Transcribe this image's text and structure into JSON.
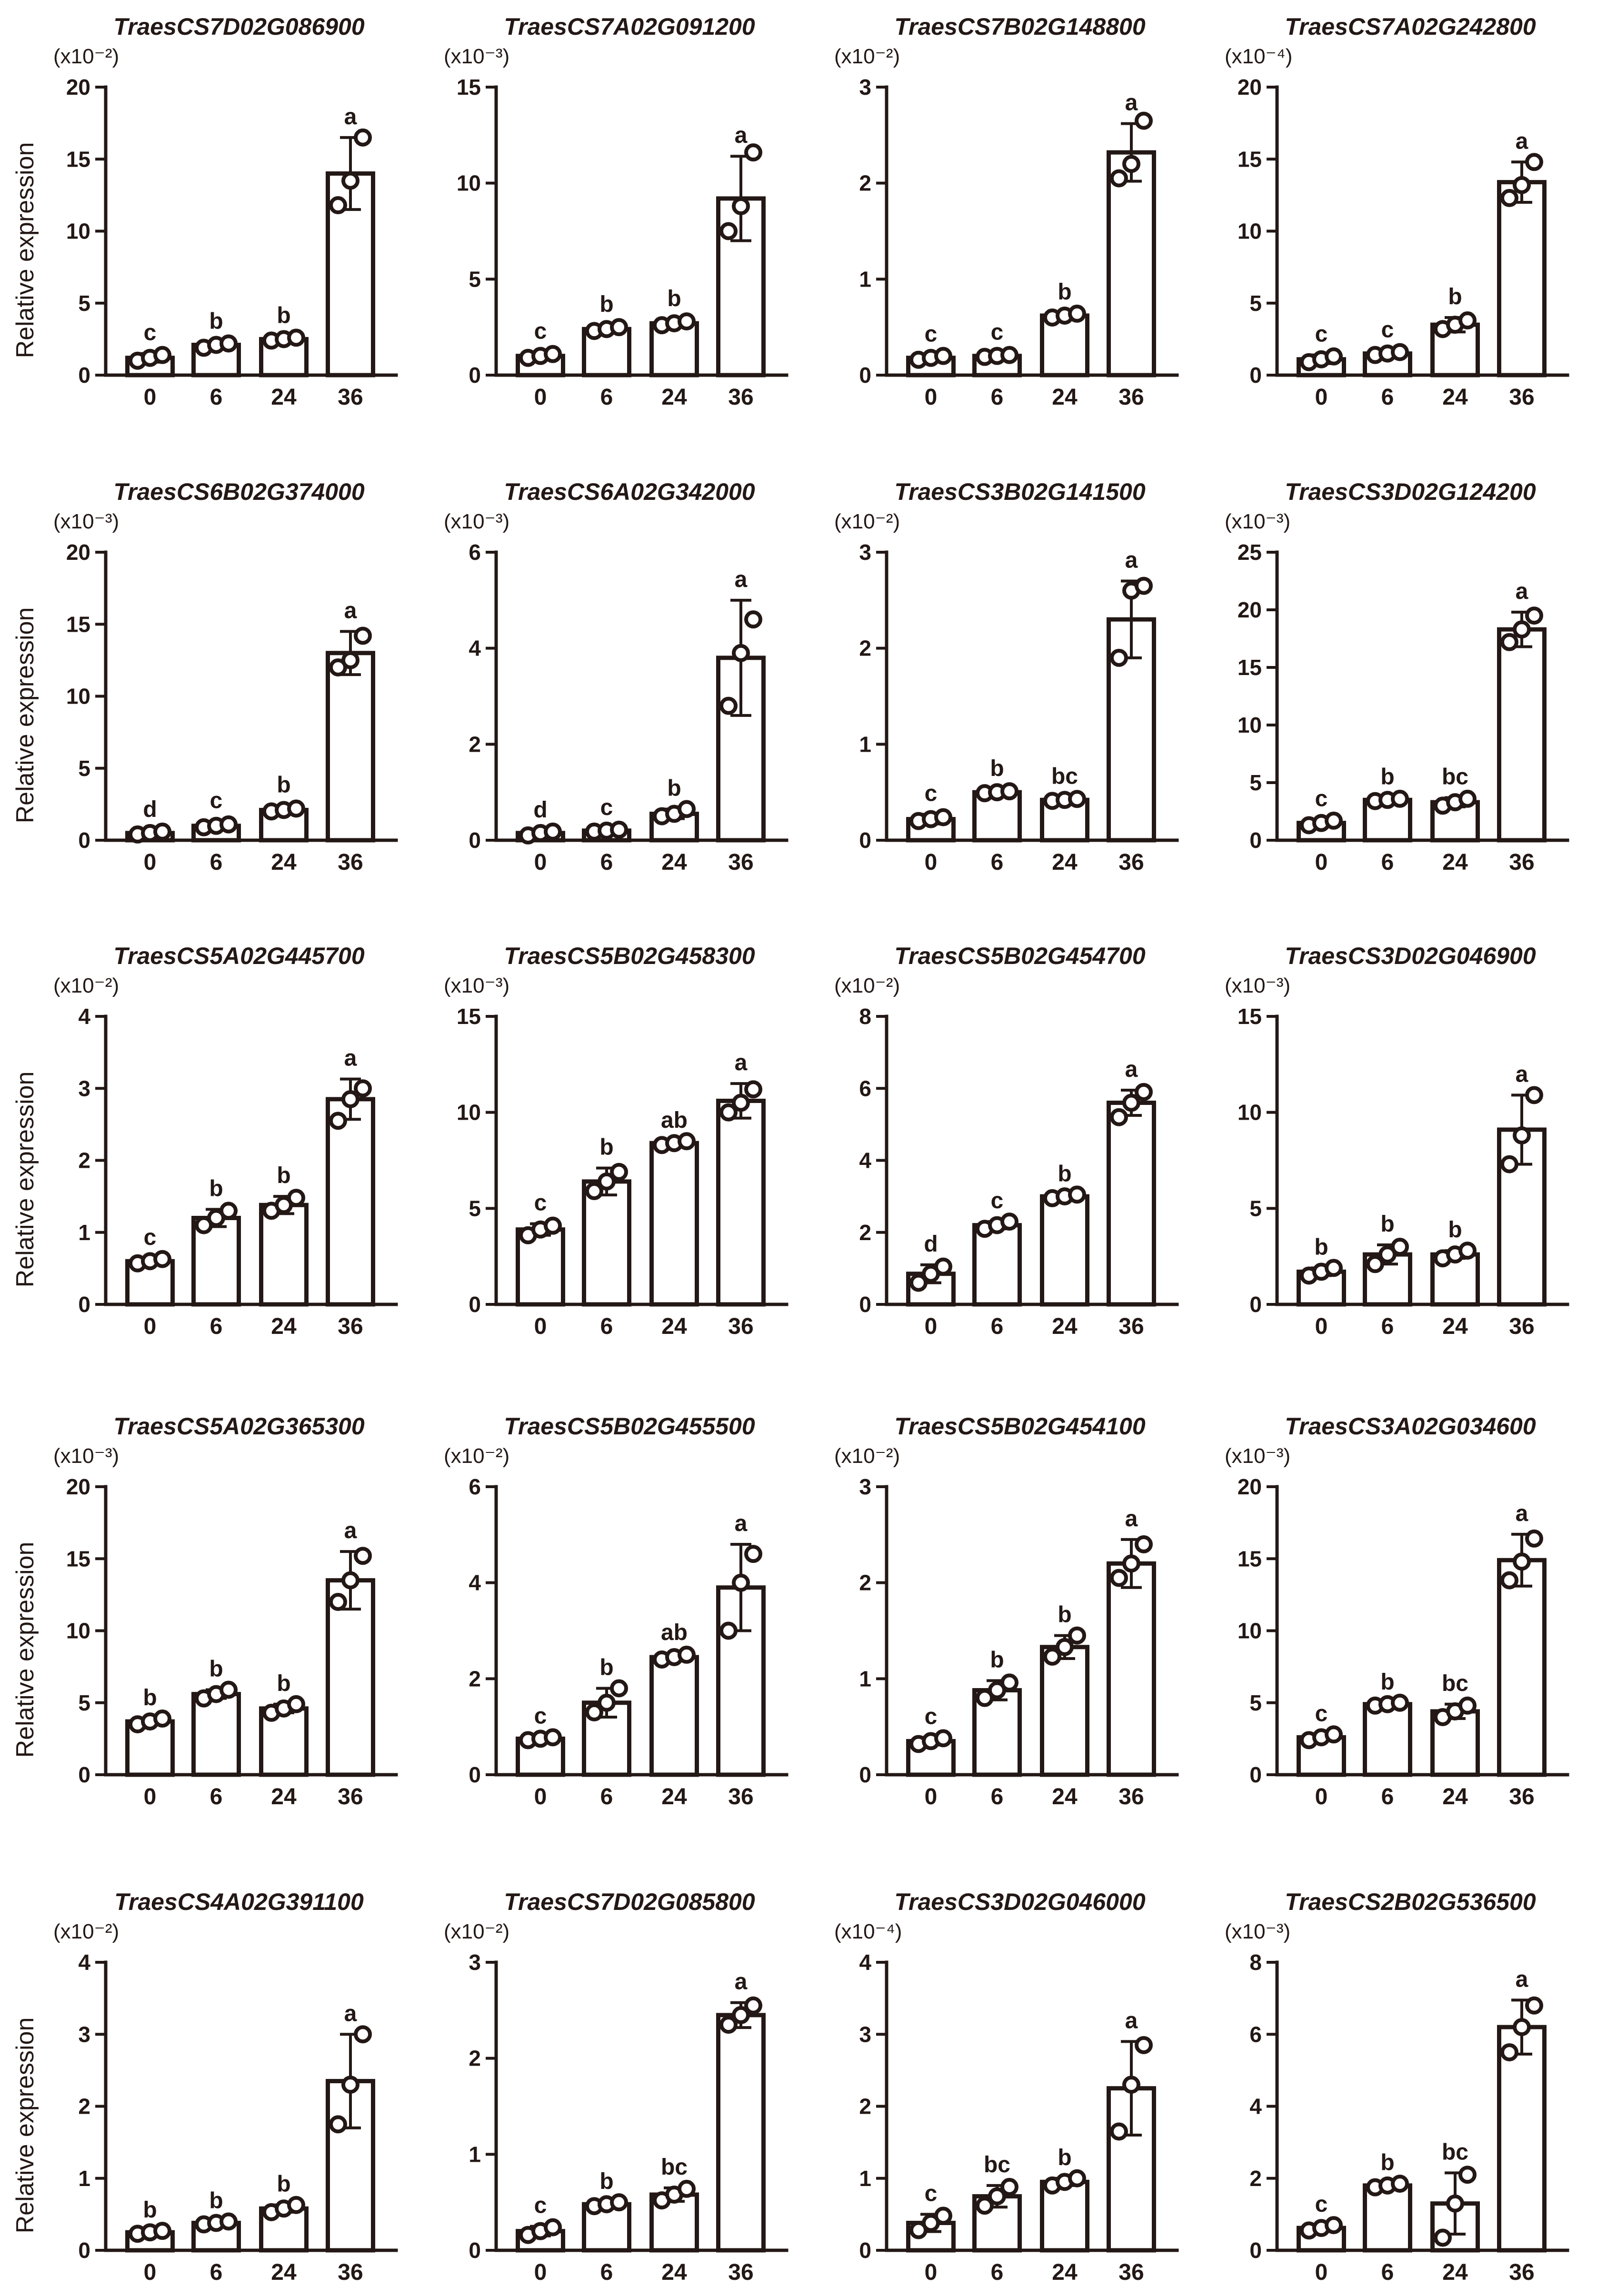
{
  "figure": {
    "y_axis_label": "Relative expression",
    "colors": {
      "ink": "#231815",
      "bar_fill": "#ffffff",
      "background": "#ffffff"
    }
  },
  "chart_data": [
    {
      "type": "bar",
      "title": "TraesCS7D02G086900",
      "multiplier": "(x10⁻²)",
      "ylabel": "Relative expression",
      "xlabel": "",
      "ylim": [
        0,
        20
      ],
      "yticks": [
        0,
        5,
        10,
        15,
        20
      ],
      "categories": [
        "0",
        "6",
        "24",
        "36"
      ],
      "values": [
        1.2,
        2.1,
        2.5,
        14.0
      ],
      "errors": [
        0.3,
        0.2,
        0.2,
        2.5
      ],
      "letters": [
        "c",
        "b",
        "b",
        "a"
      ],
      "points": [
        [
          1.0,
          1.2,
          1.4
        ],
        [
          1.9,
          2.1,
          2.2
        ],
        [
          2.4,
          2.5,
          2.6
        ],
        [
          11.8,
          13.5,
          16.5
        ]
      ]
    },
    {
      "type": "bar",
      "title": "TraesCS7A02G091200",
      "multiplier": "(x10⁻³)",
      "ylabel": "",
      "xlabel": "",
      "ylim": [
        0,
        15
      ],
      "yticks": [
        0,
        5,
        10,
        15
      ],
      "categories": [
        "0",
        "6",
        "24",
        "36"
      ],
      "values": [
        1.0,
        2.4,
        2.7,
        9.2
      ],
      "errors": [
        0.2,
        0.2,
        0.2,
        2.2
      ],
      "letters": [
        "c",
        "b",
        "b",
        "a"
      ],
      "points": [
        [
          0.9,
          1.0,
          1.1
        ],
        [
          2.3,
          2.4,
          2.5
        ],
        [
          2.6,
          2.7,
          2.8
        ],
        [
          7.5,
          8.8,
          11.6
        ]
      ]
    },
    {
      "type": "bar",
      "title": "TraesCS7B02G148800",
      "multiplier": "(x10⁻²)",
      "ylabel": "",
      "xlabel": "",
      "ylim": [
        0,
        3
      ],
      "yticks": [
        0,
        1,
        2,
        3
      ],
      "categories": [
        "0",
        "6",
        "24",
        "36"
      ],
      "values": [
        0.18,
        0.2,
        0.62,
        2.32
      ],
      "errors": [
        0.03,
        0.03,
        0.03,
        0.3
      ],
      "letters": [
        "c",
        "c",
        "b",
        "a"
      ],
      "points": [
        [
          0.16,
          0.18,
          0.2
        ],
        [
          0.19,
          0.2,
          0.21
        ],
        [
          0.6,
          0.62,
          0.64
        ],
        [
          2.05,
          2.2,
          2.65
        ]
      ]
    },
    {
      "type": "bar",
      "title": "TraesCS7A02G242800",
      "multiplier": "(x10⁻⁴)",
      "ylabel": "",
      "xlabel": "",
      "ylim": [
        0,
        20
      ],
      "yticks": [
        0,
        5,
        10,
        15,
        20
      ],
      "categories": [
        "0",
        "6",
        "24",
        "36"
      ],
      "values": [
        1.1,
        1.5,
        3.5,
        13.4
      ],
      "errors": [
        0.3,
        0.2,
        0.5,
        1.4
      ],
      "letters": [
        "c",
        "c",
        "b",
        "a"
      ],
      "points": [
        [
          0.9,
          1.1,
          1.3
        ],
        [
          1.4,
          1.5,
          1.6
        ],
        [
          3.2,
          3.5,
          3.8
        ],
        [
          12.3,
          13.2,
          14.8
        ]
      ]
    },
    {
      "type": "bar",
      "title": "TraesCS6B02G374000",
      "multiplier": "(x10⁻³)",
      "ylabel": "Relative expression",
      "xlabel": "",
      "ylim": [
        0,
        20
      ],
      "yticks": [
        0,
        5,
        10,
        15,
        20
      ],
      "categories": [
        "0",
        "6",
        "24",
        "36"
      ],
      "values": [
        0.5,
        1.0,
        2.1,
        13.0
      ],
      "errors": [
        0.2,
        0.3,
        0.3,
        1.5
      ],
      "letters": [
        "d",
        "c",
        "b",
        "a"
      ],
      "points": [
        [
          0.4,
          0.5,
          0.6
        ],
        [
          0.9,
          1.0,
          1.1
        ],
        [
          2.0,
          2.1,
          2.2
        ],
        [
          12.0,
          12.5,
          14.2
        ]
      ]
    },
    {
      "type": "bar",
      "title": "TraesCS6A02G342000",
      "multiplier": "(x10⁻³)",
      "ylabel": "",
      "xlabel": "",
      "ylim": [
        0,
        6
      ],
      "yticks": [
        0,
        2,
        4,
        6
      ],
      "categories": [
        "0",
        "6",
        "24",
        "36"
      ],
      "values": [
        0.15,
        0.2,
        0.55,
        3.8
      ],
      "errors": [
        0.05,
        0.05,
        0.1,
        1.2
      ],
      "letters": [
        "d",
        "c",
        "b",
        "a"
      ],
      "points": [
        [
          0.1,
          0.15,
          0.18
        ],
        [
          0.18,
          0.2,
          0.22
        ],
        [
          0.5,
          0.55,
          0.65
        ],
        [
          2.8,
          3.9,
          4.6
        ]
      ]
    },
    {
      "type": "bar",
      "title": "TraesCS3B02G141500",
      "multiplier": "(x10⁻²)",
      "ylabel": "",
      "xlabel": "",
      "ylim": [
        0,
        3
      ],
      "yticks": [
        0,
        1,
        2,
        3
      ],
      "categories": [
        "0",
        "6",
        "24",
        "36"
      ],
      "values": [
        0.22,
        0.5,
        0.42,
        2.3
      ],
      "errors": [
        0.05,
        0.03,
        0.03,
        0.4
      ],
      "letters": [
        "c",
        "b",
        "bc",
        "a"
      ],
      "points": [
        [
          0.2,
          0.22,
          0.24
        ],
        [
          0.49,
          0.5,
          0.51
        ],
        [
          0.41,
          0.42,
          0.43
        ],
        [
          1.9,
          2.6,
          2.65
        ]
      ]
    },
    {
      "type": "bar",
      "title": "TraesCS3D02G124200",
      "multiplier": "(x10⁻³)",
      "ylabel": "",
      "xlabel": "",
      "ylim": [
        0,
        25
      ],
      "yticks": [
        0,
        5,
        10,
        15,
        20,
        25
      ],
      "categories": [
        "0",
        "6",
        "24",
        "36"
      ],
      "values": [
        1.5,
        3.5,
        3.3,
        18.3
      ],
      "errors": [
        0.3,
        0.2,
        0.4,
        1.5
      ],
      "letters": [
        "c",
        "b",
        "bc",
        "a"
      ],
      "points": [
        [
          1.3,
          1.5,
          1.7
        ],
        [
          3.4,
          3.5,
          3.6
        ],
        [
          3.0,
          3.3,
          3.6
        ],
        [
          17.2,
          18.3,
          19.5
        ]
      ]
    },
    {
      "type": "bar",
      "title": "TraesCS5A02G445700",
      "multiplier": "(x10⁻²)",
      "ylabel": "Relative expression",
      "xlabel": "",
      "ylim": [
        0,
        4
      ],
      "yticks": [
        0,
        1,
        2,
        3,
        4
      ],
      "categories": [
        "0",
        "6",
        "24",
        "36"
      ],
      "values": [
        0.6,
        1.2,
        1.38,
        2.85
      ],
      "errors": [
        0.04,
        0.12,
        0.12,
        0.28
      ],
      "letters": [
        "c",
        "b",
        "b",
        "a"
      ],
      "points": [
        [
          0.57,
          0.6,
          0.63
        ],
        [
          1.1,
          1.2,
          1.3
        ],
        [
          1.3,
          1.38,
          1.48
        ],
        [
          2.55,
          2.85,
          3.0
        ]
      ]
    },
    {
      "type": "bar",
      "title": "TraesCS5B02G458300",
      "multiplier": "(x10⁻³)",
      "ylabel": "",
      "xlabel": "",
      "ylim": [
        0,
        15
      ],
      "yticks": [
        0,
        5,
        10,
        15
      ],
      "categories": [
        "0",
        "6",
        "24",
        "36"
      ],
      "values": [
        3.9,
        6.4,
        8.4,
        10.6
      ],
      "errors": [
        0.3,
        0.7,
        0.1,
        0.9
      ],
      "letters": [
        "c",
        "b",
        "ab",
        "a"
      ],
      "points": [
        [
          3.6,
          3.9,
          4.1
        ],
        [
          5.9,
          6.4,
          6.9
        ],
        [
          8.3,
          8.4,
          8.5
        ],
        [
          10.0,
          10.5,
          11.2
        ]
      ]
    },
    {
      "type": "bar",
      "title": "TraesCS5B02G454700",
      "multiplier": "(x10⁻²)",
      "ylabel": "",
      "xlabel": "",
      "ylim": [
        0,
        8
      ],
      "yticks": [
        0,
        2,
        4,
        6,
        8
      ],
      "categories": [
        "0",
        "6",
        "24",
        "36"
      ],
      "values": [
        0.85,
        2.2,
        3.0,
        5.6
      ],
      "errors": [
        0.25,
        0.1,
        0.05,
        0.35
      ],
      "letters": [
        "d",
        "c",
        "b",
        "a"
      ],
      "points": [
        [
          0.6,
          0.85,
          1.05
        ],
        [
          2.1,
          2.2,
          2.3
        ],
        [
          2.95,
          3.0,
          3.05
        ],
        [
          5.2,
          5.6,
          5.9
        ]
      ]
    },
    {
      "type": "bar",
      "title": "TraesCS3D02G046900",
      "multiplier": "(x10⁻³)",
      "ylabel": "",
      "xlabel": "",
      "ylim": [
        0,
        15
      ],
      "yticks": [
        0,
        5,
        10,
        15
      ],
      "categories": [
        "0",
        "6",
        "24",
        "36"
      ],
      "values": [
        1.7,
        2.6,
        2.6,
        9.1
      ],
      "errors": [
        0.2,
        0.5,
        0.2,
        1.8
      ],
      "letters": [
        "b",
        "b",
        "b",
        "a"
      ],
      "points": [
        [
          1.5,
          1.7,
          1.9
        ],
        [
          2.1,
          2.6,
          3.0
        ],
        [
          2.4,
          2.6,
          2.8
        ],
        [
          7.3,
          8.8,
          10.9
        ]
      ]
    },
    {
      "type": "bar",
      "title": "TraesCS5A02G365300",
      "multiplier": "(x10⁻³)",
      "ylabel": "Relative expression",
      "xlabel": "",
      "ylim": [
        0,
        20
      ],
      "yticks": [
        0,
        5,
        10,
        15,
        20
      ],
      "categories": [
        "0",
        "6",
        "24",
        "36"
      ],
      "values": [
        3.7,
        5.6,
        4.6,
        13.5
      ],
      "errors": [
        0.2,
        0.3,
        0.3,
        2.0
      ],
      "letters": [
        "b",
        "b",
        "b",
        "a"
      ],
      "points": [
        [
          3.5,
          3.7,
          3.9
        ],
        [
          5.3,
          5.6,
          5.9
        ],
        [
          4.3,
          4.6,
          4.9
        ],
        [
          12.0,
          13.5,
          15.2
        ]
      ]
    },
    {
      "type": "bar",
      "title": "TraesCS5B02G455500",
      "multiplier": "(x10⁻²)",
      "ylabel": "",
      "xlabel": "",
      "ylim": [
        0,
        6
      ],
      "yticks": [
        0,
        2,
        4,
        6
      ],
      "categories": [
        "0",
        "6",
        "24",
        "36"
      ],
      "values": [
        0.75,
        1.5,
        2.45,
        3.9
      ],
      "errors": [
        0.04,
        0.3,
        0.08,
        0.9
      ],
      "letters": [
        "c",
        "b",
        "ab",
        "a"
      ],
      "points": [
        [
          0.72,
          0.75,
          0.78
        ],
        [
          1.3,
          1.5,
          1.8
        ],
        [
          2.4,
          2.45,
          2.5
        ],
        [
          3.0,
          4.0,
          4.6
        ]
      ]
    },
    {
      "type": "bar",
      "title": "TraesCS5B02G454100",
      "multiplier": "(x10⁻²)",
      "ylabel": "",
      "xlabel": "",
      "ylim": [
        0,
        3
      ],
      "yticks": [
        0,
        1,
        2,
        3
      ],
      "categories": [
        "0",
        "6",
        "24",
        "36"
      ],
      "values": [
        0.35,
        0.88,
        1.33,
        2.2
      ],
      "errors": [
        0.04,
        0.1,
        0.12,
        0.25
      ],
      "letters": [
        "c",
        "b",
        "b",
        "a"
      ],
      "points": [
        [
          0.32,
          0.35,
          0.38
        ],
        [
          0.8,
          0.88,
          0.96
        ],
        [
          1.23,
          1.33,
          1.45
        ],
        [
          2.05,
          2.2,
          2.4
        ]
      ]
    },
    {
      "type": "bar",
      "title": "TraesCS3A02G034600",
      "multiplier": "(x10⁻³)",
      "ylabel": "",
      "xlabel": "",
      "ylim": [
        0,
        20
      ],
      "yticks": [
        0,
        5,
        10,
        15,
        20
      ],
      "categories": [
        "0",
        "6",
        "24",
        "36"
      ],
      "values": [
        2.6,
        4.9,
        4.4,
        14.9
      ],
      "errors": [
        0.2,
        0.1,
        0.5,
        1.8
      ],
      "letters": [
        "c",
        "b",
        "bc",
        "a"
      ],
      "points": [
        [
          2.4,
          2.6,
          2.8
        ],
        [
          4.8,
          4.9,
          5.0
        ],
        [
          4.0,
          4.4,
          4.8
        ],
        [
          13.5,
          14.8,
          16.4
        ]
      ]
    },
    {
      "type": "bar",
      "title": "TraesCS4A02G391100",
      "multiplier": "(x10⁻²)",
      "ylabel": "Relative expression",
      "xlabel": "",
      "ylim": [
        0,
        4
      ],
      "yticks": [
        0,
        1,
        2,
        3,
        4
      ],
      "categories": [
        "0",
        "6",
        "24",
        "36"
      ],
      "values": [
        0.25,
        0.38,
        0.58,
        2.35
      ],
      "errors": [
        0.02,
        0.02,
        0.05,
        0.65
      ],
      "letters": [
        "b",
        "b",
        "b",
        "a"
      ],
      "points": [
        [
          0.23,
          0.25,
          0.27
        ],
        [
          0.36,
          0.38,
          0.4
        ],
        [
          0.53,
          0.58,
          0.63
        ],
        [
          1.75,
          2.3,
          3.0
        ]
      ]
    },
    {
      "type": "bar",
      "title": "TraesCS7D02G085800",
      "multiplier": "(x10⁻²)",
      "ylabel": "",
      "xlabel": "",
      "ylim": [
        0,
        3
      ],
      "yticks": [
        0,
        1,
        2,
        3
      ],
      "categories": [
        "0",
        "6",
        "24",
        "36"
      ],
      "values": [
        0.2,
        0.48,
        0.58,
        2.45
      ],
      "errors": [
        0.05,
        0.02,
        0.07,
        0.13
      ],
      "letters": [
        "c",
        "b",
        "bc",
        "a"
      ],
      "points": [
        [
          0.16,
          0.2,
          0.24
        ],
        [
          0.46,
          0.48,
          0.5
        ],
        [
          0.52,
          0.58,
          0.64
        ],
        [
          2.35,
          2.45,
          2.55
        ]
      ]
    },
    {
      "type": "bar",
      "title": "TraesCS3D02G046000",
      "multiplier": "(x10⁻⁴)",
      "ylabel": "",
      "xlabel": "",
      "ylim": [
        0,
        4
      ],
      "yticks": [
        0,
        1,
        2,
        3,
        4
      ],
      "categories": [
        "0",
        "6",
        "24",
        "36"
      ],
      "values": [
        0.38,
        0.75,
        0.95,
        2.25
      ],
      "errors": [
        0.12,
        0.15,
        0.05,
        0.65
      ],
      "letters": [
        "c",
        "bc",
        "b",
        "a"
      ],
      "points": [
        [
          0.28,
          0.38,
          0.48
        ],
        [
          0.62,
          0.75,
          0.88
        ],
        [
          0.9,
          0.95,
          1.0
        ],
        [
          1.65,
          2.3,
          2.85
        ]
      ]
    },
    {
      "type": "bar",
      "title": "TraesCS2B02G536500",
      "multiplier": "(x10⁻³)",
      "ylabel": "",
      "xlabel": "",
      "ylim": [
        0,
        8
      ],
      "yticks": [
        0,
        2,
        4,
        6,
        8
      ],
      "categories": [
        "0",
        "6",
        "24",
        "36"
      ],
      "values": [
        0.62,
        1.8,
        1.3,
        6.2
      ],
      "errors": [
        0.08,
        0.06,
        0.85,
        0.75
      ],
      "letters": [
        "c",
        "b",
        "bc",
        "a"
      ],
      "points": [
        [
          0.55,
          0.62,
          0.7
        ],
        [
          1.75,
          1.8,
          1.85
        ],
        [
          0.35,
          1.3,
          2.1
        ],
        [
          5.5,
          6.2,
          6.8
        ]
      ]
    }
  ]
}
